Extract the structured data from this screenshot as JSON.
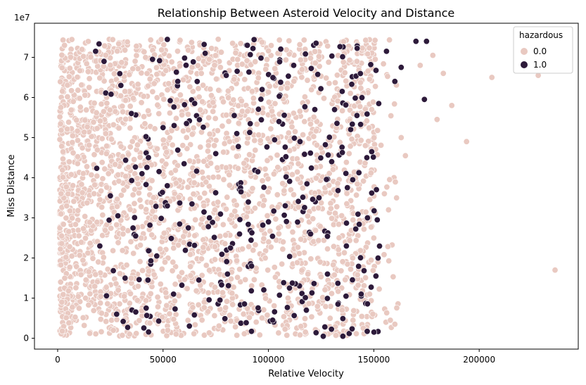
{
  "chart_data": {
    "type": "scatter",
    "title": "Relationship Between Asteroid Velocity and Distance",
    "xlabel": "Relative Velocity",
    "ylabel": "Miss Distance",
    "y_offset_label": "1e7",
    "xlim": [
      -11000,
      247000
    ],
    "ylim": [
      -0.27,
      7.85
    ],
    "x_ticks": [
      0,
      50000,
      100000,
      150000,
      200000
    ],
    "x_tick_labels": [
      "0",
      "50000",
      "100000",
      "150000",
      "200000"
    ],
    "y_ticks": [
      0,
      1,
      2,
      3,
      4,
      5,
      6,
      7
    ],
    "y_tick_labels": [
      "0",
      "1",
      "2",
      "3",
      "4",
      "5",
      "6",
      "7"
    ],
    "grid": false,
    "legend": {
      "title": "hazardous",
      "position": "top-right",
      "entries": [
        {
          "label": "0.0",
          "color": "#e9c9c1"
        },
        {
          "label": "1.0",
          "color": "#2d1a3a"
        }
      ]
    },
    "series": [
      {
        "name": "0.0",
        "color": "#e9c9c1",
        "distribution": "dense band, x from ~1000 to ~160000, y from 0 to 7.45e7",
        "points": [
          [
            1500,
            5.75
          ],
          [
            2000,
            0.9
          ],
          [
            236000,
            1.7
          ],
          [
            228000,
            6.55
          ],
          [
            206000,
            6.5
          ],
          [
            194000,
            4.9
          ],
          [
            187000,
            5.8
          ],
          [
            183000,
            6.6
          ],
          [
            180000,
            5.45
          ],
          [
            178000,
            7.05
          ],
          [
            172000,
            6.8
          ],
          [
            165000,
            4.55
          ],
          [
            163000,
            5.0
          ],
          [
            160000,
            0.35
          ],
          [
            157000,
            3.2
          ],
          [
            155000,
            3.6
          ],
          [
            152000,
            1.9
          ],
          [
            150000,
            2.5
          ],
          [
            148000,
            1.1
          ],
          [
            146000,
            4.8
          ],
          [
            145000,
            0.25
          ],
          [
            142000,
            6.9
          ],
          [
            140000,
            2.0
          ],
          [
            138000,
            5.2
          ],
          [
            135000,
            0.7
          ]
        ]
      },
      {
        "name": "1.0",
        "color": "#2d1a3a",
        "distribution": "scattered, x from ~20000 to ~175000, y from 0.05e7 to 7.45e7",
        "points": [
          [
            175000,
            7.4
          ],
          [
            170000,
            7.4
          ],
          [
            174000,
            5.95
          ],
          [
            163000,
            6.75
          ],
          [
            160000,
            6.4
          ],
          [
            156000,
            7.15
          ],
          [
            152000,
            2.0
          ],
          [
            151000,
            1.55
          ],
          [
            149000,
            4.65
          ],
          [
            147000,
            3.0
          ],
          [
            144000,
            1.1
          ],
          [
            142000,
            5.55
          ],
          [
            140000,
            3.95
          ],
          [
            137000,
            2.3
          ],
          [
            135000,
            6.15
          ],
          [
            133000,
            0.85
          ],
          [
            130000,
            4.4
          ],
          [
            128000,
            1.6
          ],
          [
            126000,
            0.05
          ],
          [
            124000,
            3.5
          ],
          [
            122000,
            5.7
          ],
          [
            120000,
            2.6
          ],
          [
            118000,
            0.7
          ],
          [
            115000,
            4.9
          ],
          [
            112000,
            6.8
          ],
          [
            110000,
            1.25
          ],
          [
            108000,
            3.3
          ],
          [
            105000,
            5.4
          ],
          [
            102000,
            0.45
          ],
          [
            100000,
            2.9
          ],
          [
            97000,
            6.2
          ],
          [
            95000,
            4.15
          ],
          [
            92000,
            1.8
          ],
          [
            90000,
            7.3
          ],
          [
            87000,
            3.65
          ],
          [
            85000,
            5.1
          ],
          [
            82000,
            2.25
          ],
          [
            80000,
            6.55
          ],
          [
            77000,
            0.95
          ],
          [
            75000,
            4.6
          ],
          [
            72000,
            3.0
          ],
          [
            70000,
            7.1
          ],
          [
            67000,
            1.45
          ],
          [
            65000,
            5.85
          ],
          [
            62000,
            2.75
          ],
          [
            60000,
            4.35
          ],
          [
            57000,
            6.4
          ],
          [
            55000,
            1.1
          ],
          [
            52000,
            3.8
          ],
          [
            50000,
            5.25
          ],
          [
            47000,
            2.05
          ],
          [
            45000,
            6.95
          ],
          [
            42000,
            0.75
          ],
          [
            40000,
            4.1
          ],
          [
            37000,
            2.55
          ],
          [
            35000,
            5.6
          ],
          [
            32000,
            1.5
          ],
          [
            30000,
            6.3
          ],
          [
            28000,
            0.6
          ],
          [
            25000,
            3.55
          ],
          [
            22000,
            6.9
          ],
          [
            20000,
            2.3
          ],
          [
            18000,
            7.15
          ]
        ]
      }
    ]
  }
}
